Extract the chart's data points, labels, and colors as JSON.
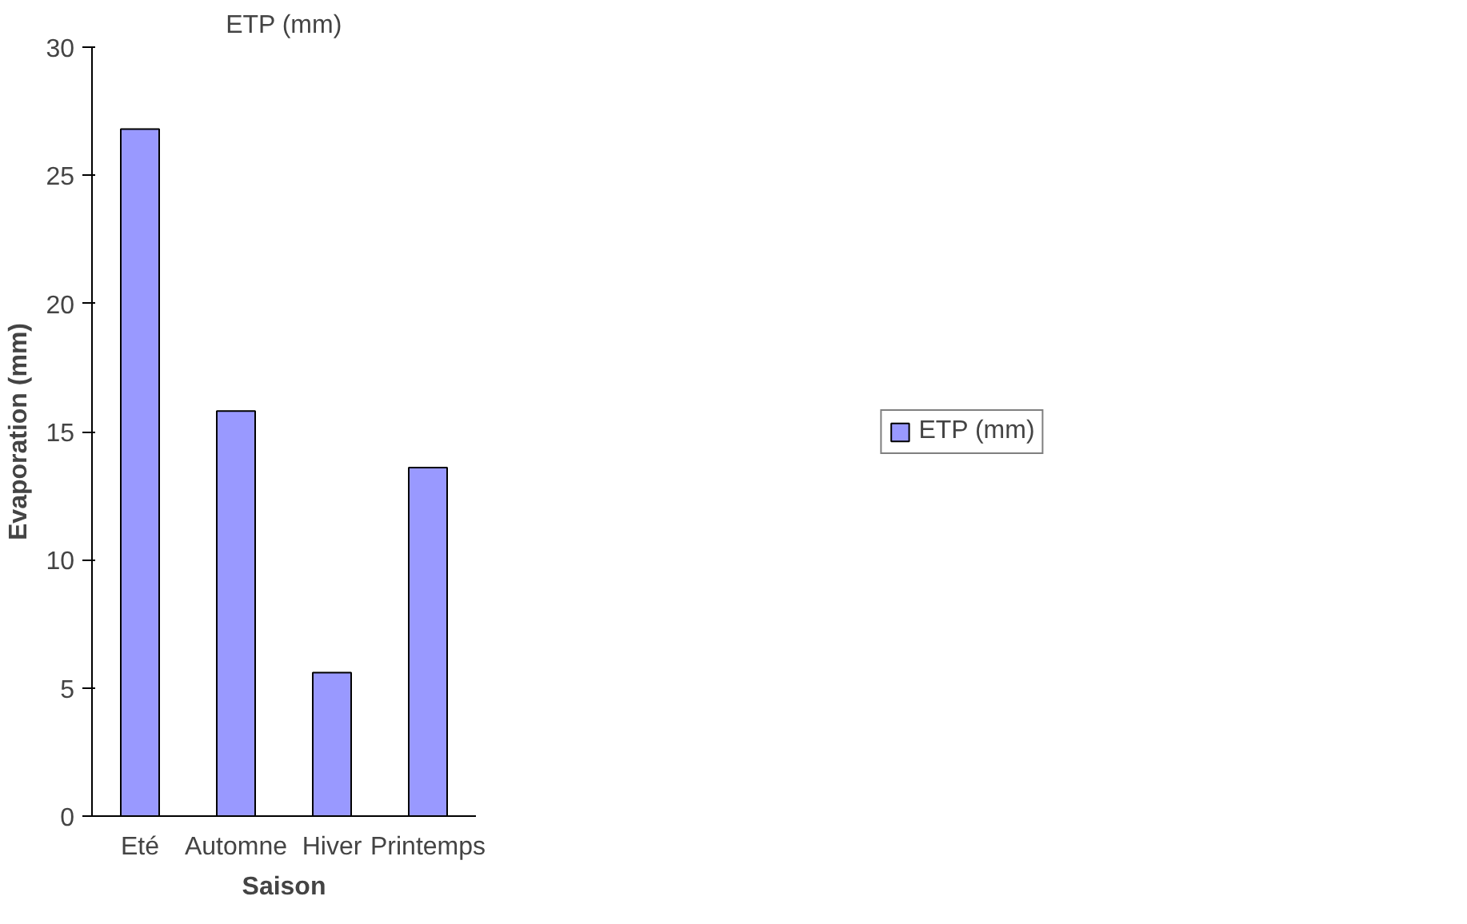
{
  "chart_data": {
    "type": "bar",
    "title": "ETP (mm)",
    "xlabel": "Saison",
    "ylabel": "Evaporation (mm)",
    "categories": [
      "Eté",
      "Automne",
      "Hiver",
      "Printemps"
    ],
    "series": [
      {
        "name": "ETP (mm)",
        "color": "#9999ff",
        "values": [
          26.8,
          15.8,
          5.6,
          13.6
        ]
      }
    ],
    "ylim": [
      0,
      30
    ],
    "yticks": [
      0,
      5,
      10,
      15,
      20,
      25,
      30
    ],
    "grid": false,
    "legend": "right"
  }
}
